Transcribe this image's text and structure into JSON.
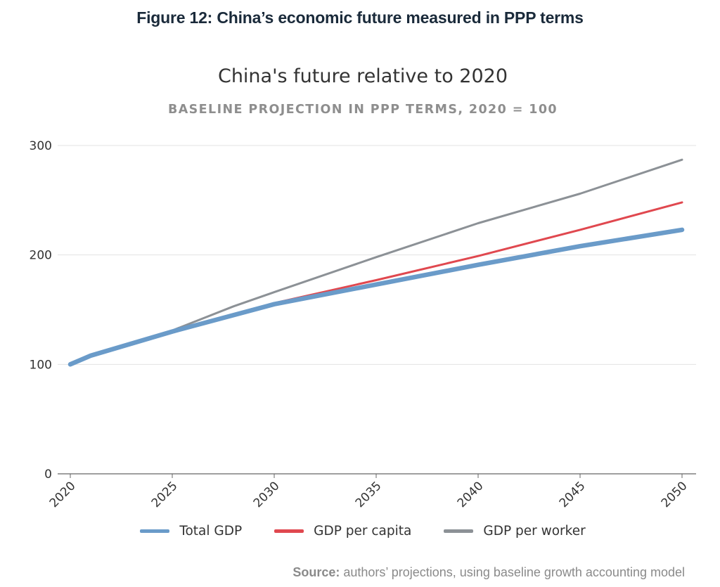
{
  "figure": {
    "title": "Figure 12: China’s economic future measured in PPP terms",
    "source_label": "Source:",
    "source_text": " authors’ projections, using baseline growth accounting model"
  },
  "chart_data": {
    "type": "line",
    "title": "China's future relative to 2020",
    "subtitle": "BASELINE PROJECTION IN PPP TERMS, 2020 = 100",
    "xlabel": "",
    "ylabel": "",
    "x_ticks": [
      "2020",
      "2025",
      "2030",
      "2035",
      "2040",
      "2045",
      "2050"
    ],
    "y_ticks": [
      "0",
      "100",
      "200",
      "300"
    ],
    "xlim": [
      2020,
      2050
    ],
    "ylim": [
      0,
      300
    ],
    "grid": "horizontal",
    "legend_position": "bottom",
    "series": [
      {
        "name": "Total GDP",
        "color": "#6a9bc9",
        "x": [
          2020,
          2021,
          2025,
          2030,
          2035,
          2040,
          2045,
          2050
        ],
        "y": [
          100,
          108,
          130,
          155,
          173,
          191,
          208,
          223
        ]
      },
      {
        "name": "GDP per capita",
        "color": "#e0484f",
        "x": [
          2020,
          2021,
          2025,
          2030,
          2035,
          2040,
          2045,
          2050
        ],
        "y": [
          100,
          108,
          129,
          156,
          177,
          199,
          223,
          248
        ]
      },
      {
        "name": "GDP per worker",
        "color": "#8c9196",
        "x": [
          2020,
          2021,
          2025,
          2028,
          2030,
          2035,
          2040,
          2045,
          2050
        ],
        "y": [
          100,
          108,
          131,
          153,
          166,
          198,
          229,
          256,
          287
        ]
      }
    ]
  }
}
